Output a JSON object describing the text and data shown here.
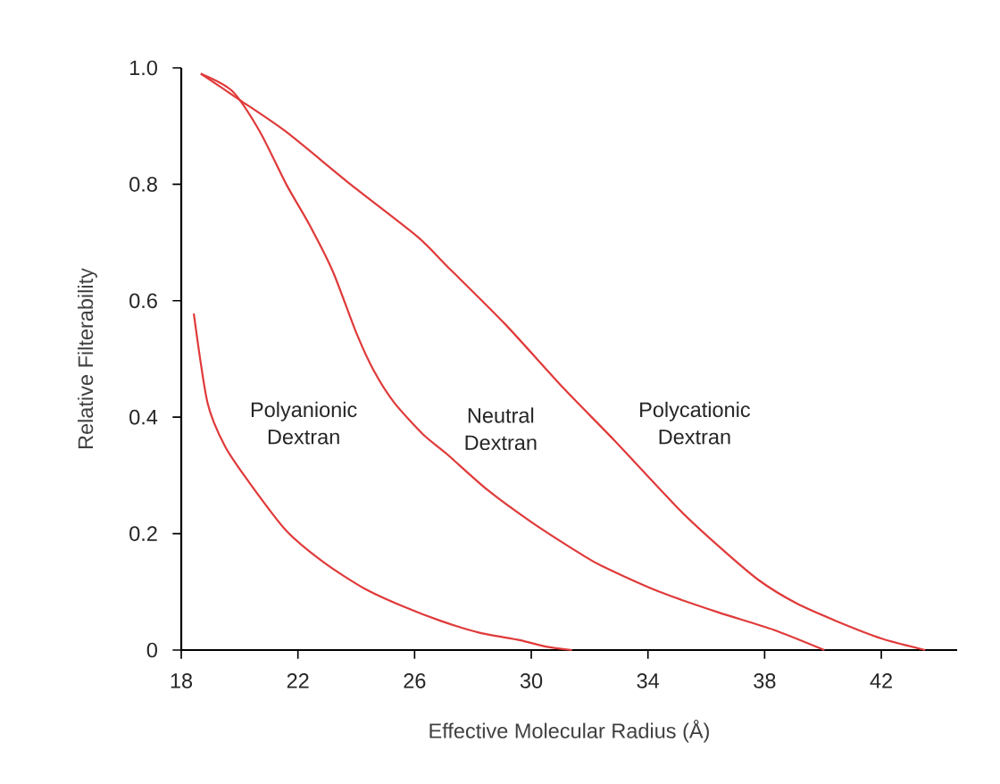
{
  "chart_data": {
    "type": "line",
    "xlabel": "Effective Molecular Radius (Å)",
    "ylabel": "Relative Filterability",
    "xlim": [
      18,
      44.6
    ],
    "ylim": [
      0,
      1.0
    ],
    "xticks": [
      18,
      22,
      26,
      30,
      34,
      38,
      42
    ],
    "yticks": [
      0,
      0.2,
      0.4,
      0.6,
      0.8,
      {
        "value": 1.0,
        "label": "1.0"
      }
    ],
    "legend": false,
    "grid": false,
    "marker": "none",
    "line_style": "solid",
    "series": [
      {
        "name": "Polyanionic Dextran",
        "color": "#e03a3a",
        "x": [
          18.43,
          18.9,
          19.5,
          20.3,
          21.6,
          22.9,
          24.3,
          25.6,
          26.9,
          28.2,
          29.6,
          30.5,
          31.4
        ],
        "values": [
          0.578,
          0.425,
          0.35,
          0.29,
          0.205,
          0.15,
          0.105,
          0.075,
          0.05,
          0.03,
          0.017,
          0.006,
          0
        ]
      },
      {
        "name": "Neutral Dextran",
        "color": "#e03a3a",
        "x": [
          18.67,
          19.75,
          20.7,
          21.6,
          22.4,
          23.2,
          24.0,
          24.6,
          25.3,
          26.3,
          27.1,
          28.5,
          30.0,
          31.7,
          32.4,
          34.4,
          36.4,
          38.3,
          40.05
        ],
        "values": [
          0.99,
          0.96,
          0.89,
          0.8,
          0.73,
          0.65,
          0.545,
          0.48,
          0.425,
          0.37,
          0.337,
          0.275,
          0.22,
          0.165,
          0.145,
          0.1,
          0.065,
          0.035,
          0
        ]
      },
      {
        "name": "Polycationic Dextran",
        "color": "#e03a3a",
        "x": [
          18.67,
          20.0,
          21.6,
          23.8,
          26.1,
          27.1,
          29.1,
          31.1,
          32.85,
          35.1,
          36.5,
          37.8,
          39.1,
          40.45,
          42.0,
          43.5
        ],
        "values": [
          0.99,
          0.945,
          0.89,
          0.8,
          0.71,
          0.66,
          0.56,
          0.45,
          0.36,
          0.24,
          0.175,
          0.12,
          0.08,
          0.05,
          0.02,
          0
        ]
      }
    ]
  }
}
